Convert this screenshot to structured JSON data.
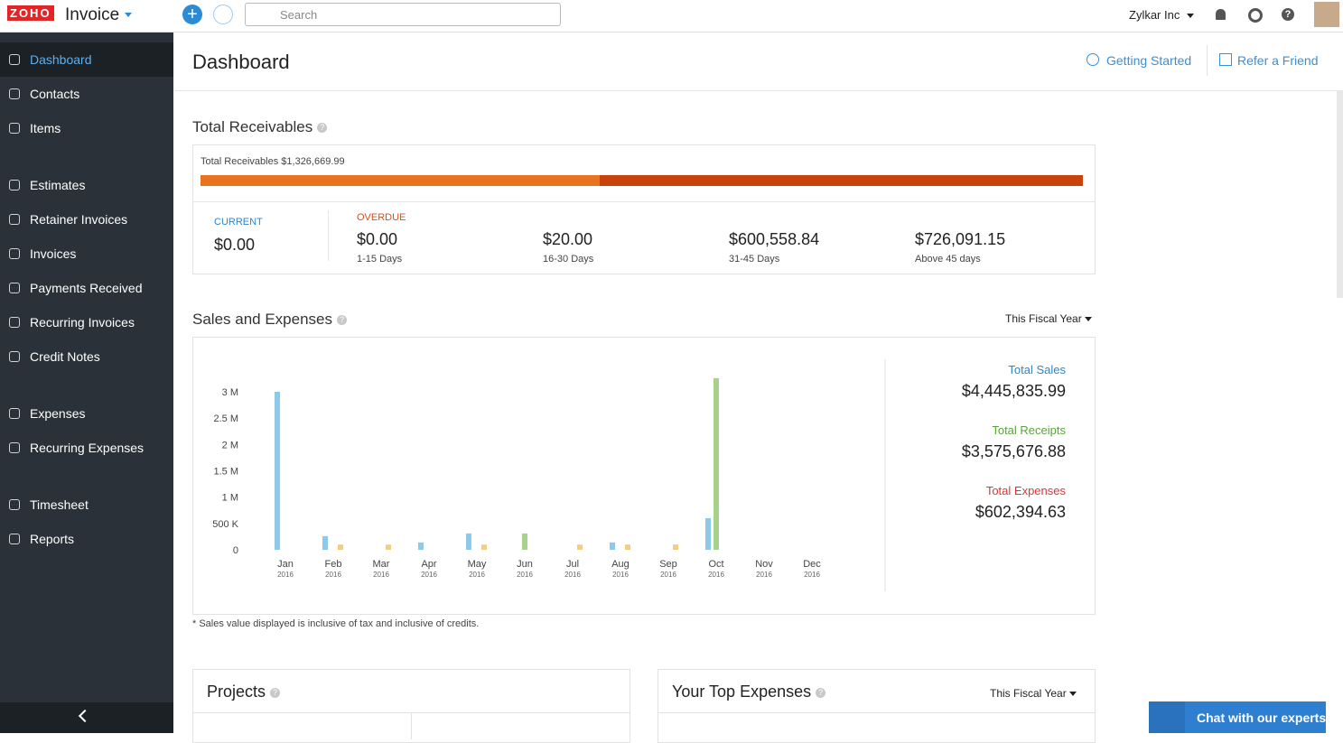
{
  "top_bar": {
    "logo": "ZOHO",
    "app_name": "Invoice",
    "search_placeholder": "Search",
    "org_name": "Zylkar Inc"
  },
  "sidebar": {
    "groups": [
      [
        "Dashboard",
        "Contacts",
        "Items"
      ],
      [
        "Estimates",
        "Retainer Invoices",
        "Invoices",
        "Payments Received",
        "Recurring Invoices",
        "Credit Notes"
      ],
      [
        "Expenses",
        "Recurring Expenses"
      ],
      [
        "Timesheet",
        "Reports"
      ]
    ],
    "active": "Dashboard"
  },
  "header": {
    "title": "Dashboard",
    "links": [
      "Getting Started",
      "Refer a Friend"
    ]
  },
  "receivables": {
    "title": "Total Receivables",
    "summary_label": "Total Receivables",
    "summary_amount": "$1,326,669.99",
    "bar_colors": [
      "#e8731f",
      "#c9430c"
    ],
    "current": {
      "label": "CURRENT",
      "amount": "$0.00"
    },
    "overdue_label": "OVERDUE",
    "buckets": [
      {
        "amount": "$0.00",
        "range": "1-15 Days"
      },
      {
        "amount": "$20.00",
        "range": "16-30 Days"
      },
      {
        "amount": "$600,558.84",
        "range": "31-45 Days"
      },
      {
        "amount": "$726,091.15",
        "range": "Above 45 days"
      }
    ]
  },
  "sales_and_expenses": {
    "title": "Sales and Expenses",
    "period": "This Fiscal Year",
    "totals": [
      {
        "label": "Total Sales",
        "amount": "$4,445,835.99",
        "color": "#2f86c9"
      },
      {
        "label": "Total Receipts",
        "amount": "$3,575,676.88",
        "color": "#5aa33a"
      },
      {
        "label": "Total Expenses",
        "amount": "$602,394.63",
        "color": "#d0393b"
      }
    ],
    "note": "* Sales value displayed is inclusive of tax and inclusive of credits.",
    "chart": {
      "type": "bar",
      "categories": [
        "Jan",
        "Feb",
        "Mar",
        "Apr",
        "May",
        "Jun",
        "Jul",
        "Aug",
        "Sep",
        "Oct",
        "Nov",
        "Dec"
      ],
      "category_years": [
        "2016",
        "2016",
        "2016",
        "2016",
        "2016",
        "2016",
        "2016",
        "2016",
        "2016",
        "2016",
        "2016",
        "2016"
      ],
      "series": [
        {
          "color": "#8ec9ea",
          "values": [
            3000000,
            260000,
            0,
            140000,
            310000,
            0,
            0,
            140000,
            0,
            600000,
            0,
            0
          ]
        },
        {
          "color": "#a9d18e",
          "values": [
            0,
            0,
            0,
            0,
            0,
            310000,
            0,
            0,
            0,
            3260000,
            0,
            0
          ]
        },
        {
          "color": "#f2cf7f",
          "values": [
            0,
            100000,
            100000,
            0,
            100000,
            0,
            100000,
            100000,
            100000,
            0,
            0,
            0
          ]
        }
      ],
      "ylim": [
        0,
        3400000
      ],
      "yticks": [
        0,
        {
          "value": 500000,
          "label": "500 K"
        },
        {
          "value": 1000000,
          "label": "1 M"
        },
        {
          "value": 1500000,
          "label": "1.5 M"
        },
        {
          "value": 2000000,
          "label": "2 M"
        },
        {
          "value": 2500000,
          "label": "2.5 M"
        },
        {
          "value": 3000000,
          "label": "3 M"
        }
      ]
    }
  },
  "projects": {
    "title": "Projects"
  },
  "top_expenses": {
    "title": "Your Top Expenses",
    "period": "This Fiscal Year"
  },
  "chat_button": "Chat with our experts"
}
